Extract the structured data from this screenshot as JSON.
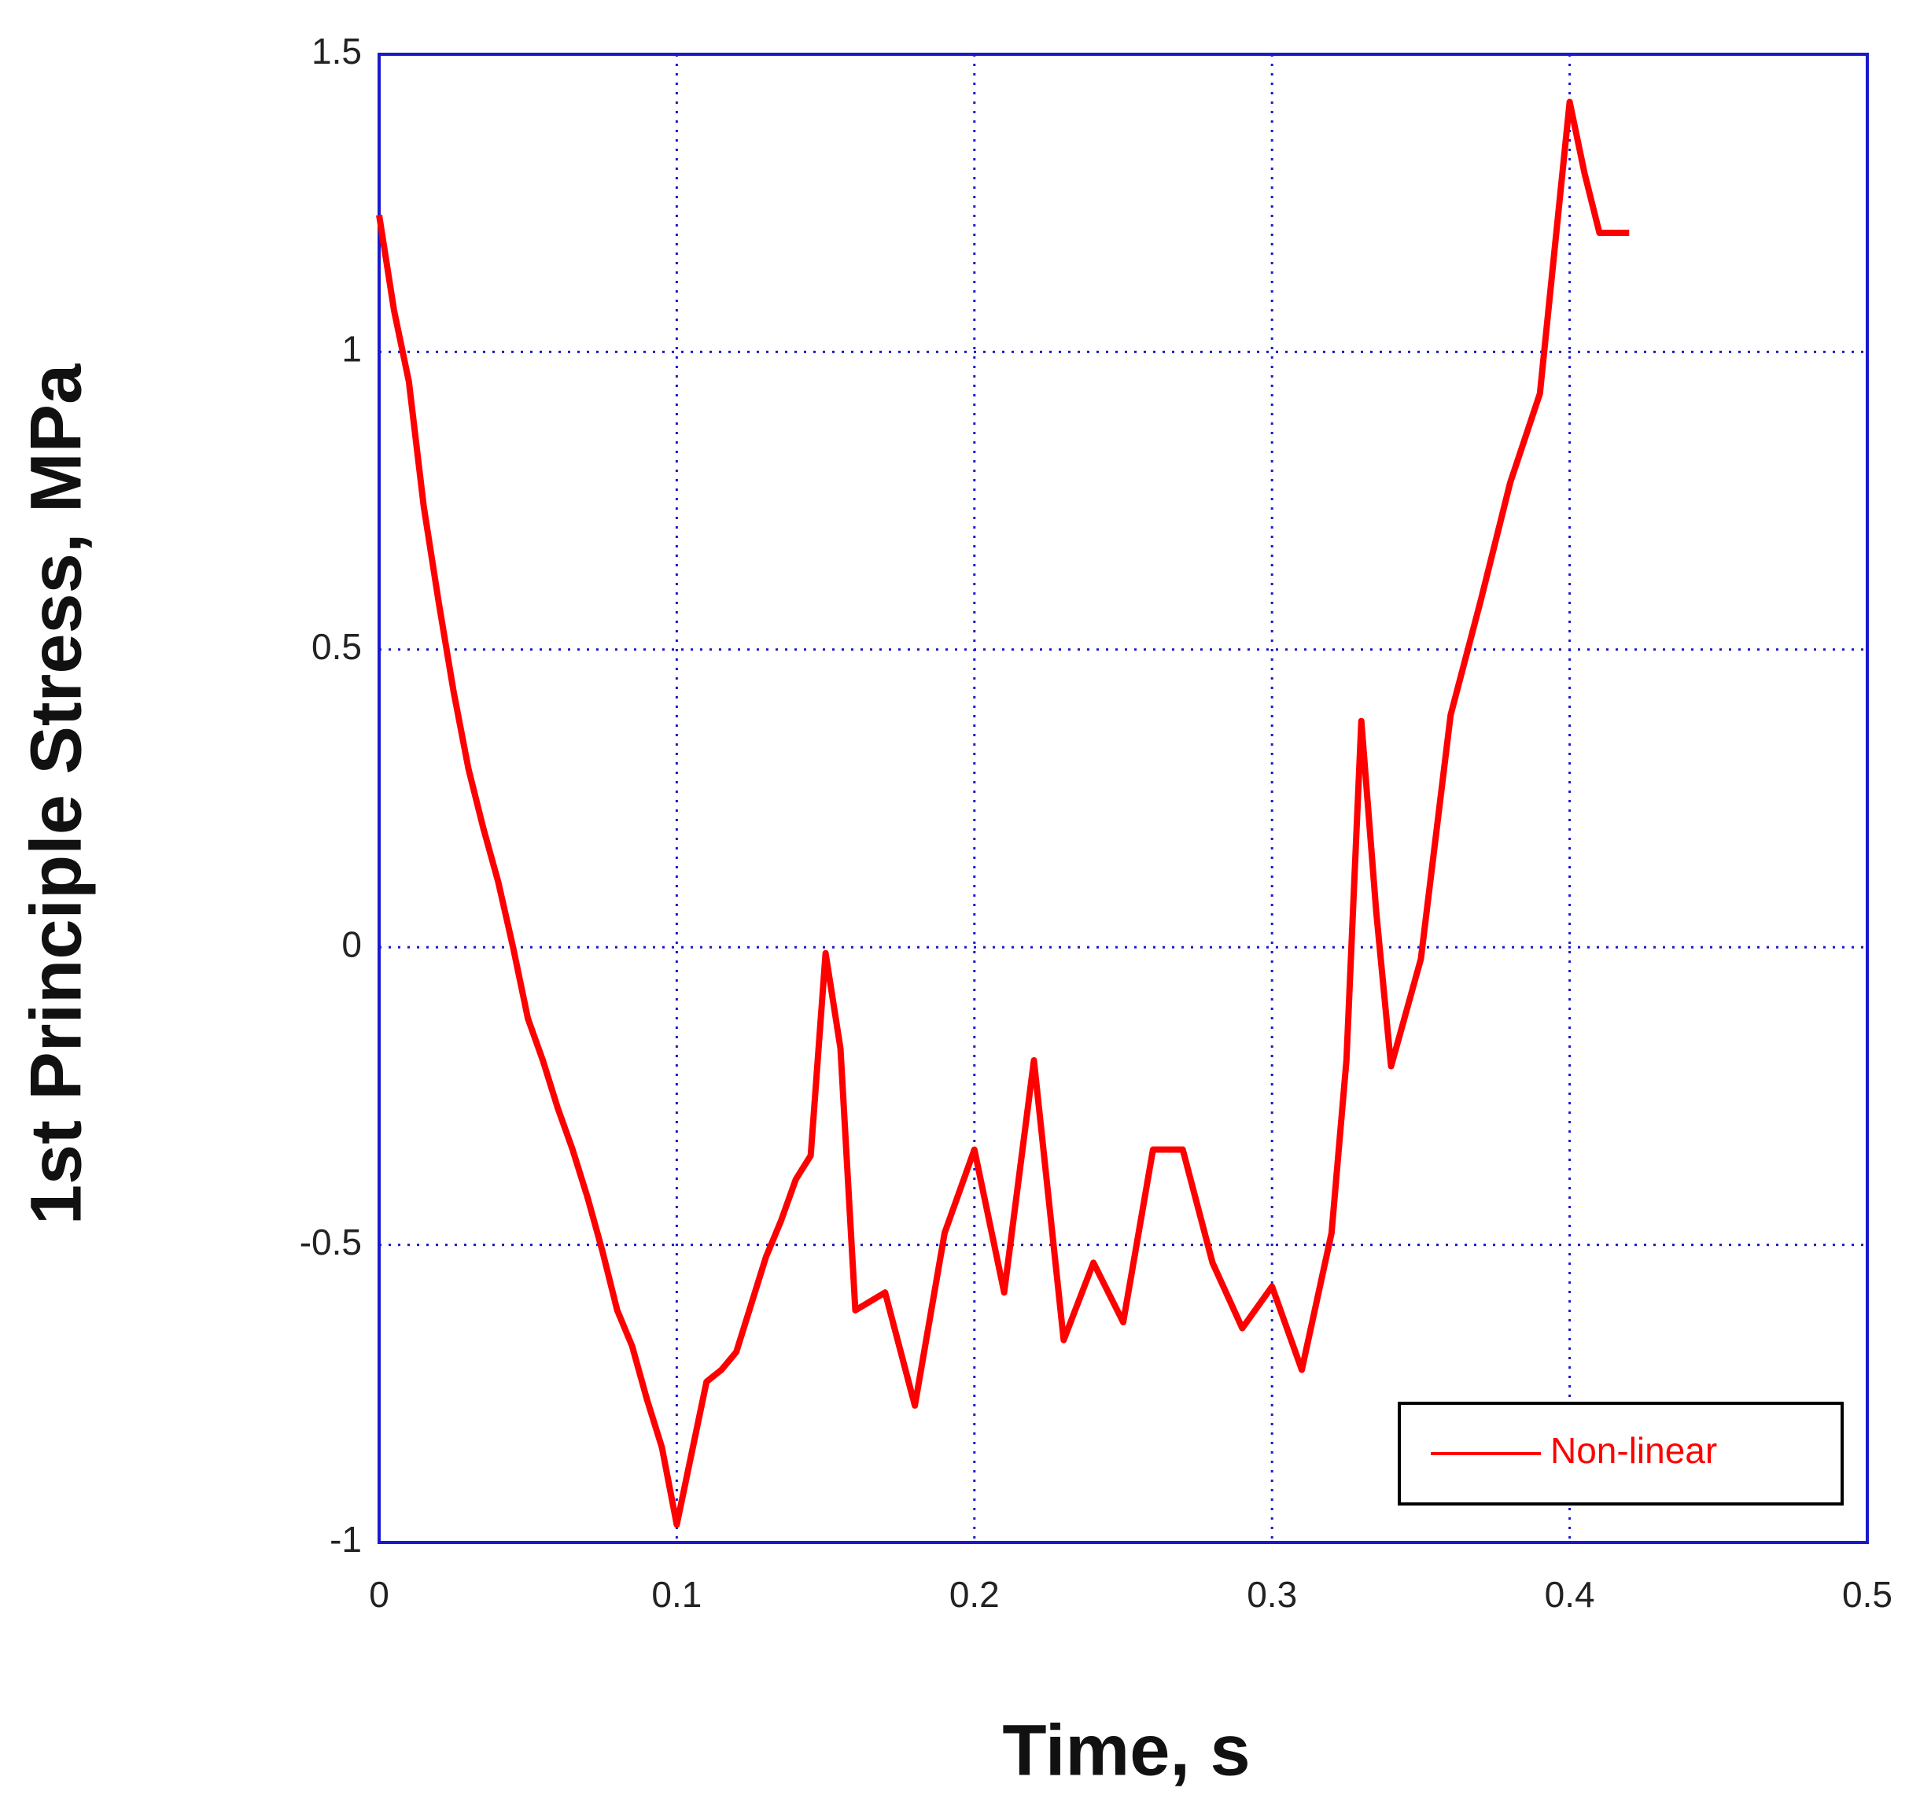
{
  "chart_data": {
    "type": "line",
    "x_label": "Time, s",
    "y_label": "1st Principle Stress, MPa",
    "x": [
      0,
      0.005,
      0.01,
      0.015,
      0.02,
      0.025,
      0.03,
      0.035,
      0.04,
      0.045,
      0.05,
      0.055,
      0.06,
      0.065,
      0.07,
      0.075,
      0.08,
      0.085,
      0.09,
      0.095,
      0.1,
      0.105,
      0.11,
      0.115,
      0.12,
      0.125,
      0.13,
      0.135,
      0.14,
      0.145,
      0.15,
      0.155,
      0.16,
      0.17,
      0.18,
      0.19,
      0.2,
      0.21,
      0.22,
      0.23,
      0.24,
      0.25,
      0.26,
      0.27,
      0.28,
      0.29,
      0.3,
      0.31,
      0.32,
      0.325,
      0.33,
      0.335,
      0.34,
      0.35,
      0.36,
      0.37,
      0.38,
      0.39,
      0.4,
      0.405,
      0.41,
      0.42
    ],
    "series": [
      {
        "name": "Non-linear",
        "color": "#ff0000",
        "values": [
          1.23,
          1.07,
          0.95,
          0.74,
          0.58,
          0.43,
          0.3,
          0.2,
          0.11,
          0.0,
          -0.12,
          -0.19,
          -0.27,
          -0.34,
          -0.42,
          -0.51,
          -0.61,
          -0.67,
          -0.76,
          -0.84,
          -0.97,
          -0.85,
          -0.73,
          -0.71,
          -0.68,
          -0.6,
          -0.52,
          -0.46,
          -0.39,
          -0.35,
          -0.01,
          -0.17,
          -0.61,
          -0.58,
          -0.77,
          -0.48,
          -0.34,
          -0.58,
          -0.19,
          -0.66,
          -0.53,
          -0.63,
          -0.34,
          -0.34,
          -0.53,
          -0.64,
          -0.57,
          -0.71,
          -0.48,
          -0.19,
          0.38,
          0.06,
          -0.2,
          -0.02,
          0.39,
          0.58,
          0.78,
          0.93,
          1.42,
          1.3,
          1.2,
          1.2
        ]
      }
    ],
    "xlim": [
      0,
      0.5
    ],
    "xticks": [
      0,
      0.1,
      0.2,
      0.3,
      0.4,
      0.5
    ],
    "ylim": [
      -1,
      1.5
    ],
    "yticks": [
      -1,
      -0.5,
      0,
      0.5,
      1,
      1.5
    ],
    "grid": true,
    "axis_color": "#1a1acc",
    "legend_position": "lower right"
  }
}
